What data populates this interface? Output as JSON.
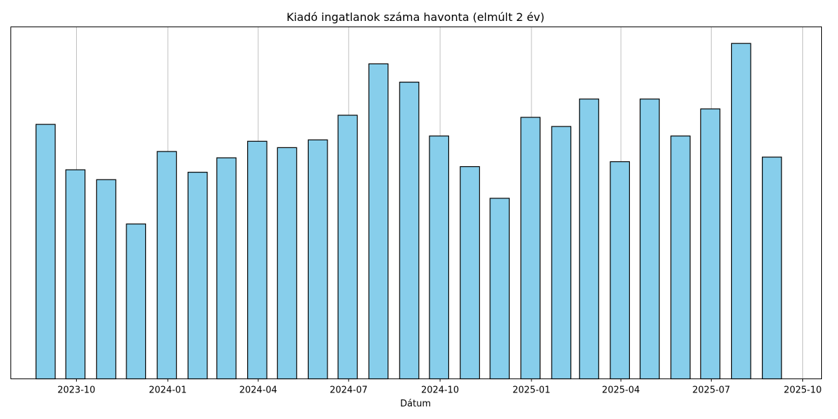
{
  "chart_data": {
    "type": "bar",
    "title": "Kiadó ingatlanok száma havonta (elmúlt 2 év)",
    "xlabel": "Dátum",
    "ylabel": "",
    "y_axis_visible": false,
    "ylim": [
      0,
      1
    ],
    "grid": "x-only",
    "bar_color": "#87ceeb",
    "bar_edge_color": "#000000",
    "grid_color": "#b0b0b0",
    "xlim": [
      "2023-07-27",
      "2025-10-20"
    ],
    "x_ticks": [
      {
        "date": "2023-10-01",
        "label": "2023-10"
      },
      {
        "date": "2024-01-01",
        "label": "2024-01"
      },
      {
        "date": "2024-04-01",
        "label": "2024-04"
      },
      {
        "date": "2024-07-01",
        "label": "2024-07"
      },
      {
        "date": "2024-10-01",
        "label": "2024-10"
      },
      {
        "date": "2025-01-01",
        "label": "2025-01"
      },
      {
        "date": "2025-04-01",
        "label": "2025-04"
      },
      {
        "date": "2025-07-01",
        "label": "2025-07"
      },
      {
        "date": "2025-10-01",
        "label": "2025-10"
      }
    ],
    "x": [
      "2023-08-31",
      "2023-09-30",
      "2023-10-31",
      "2023-11-30",
      "2023-12-31",
      "2024-01-31",
      "2024-02-29",
      "2024-03-31",
      "2024-04-30",
      "2024-05-31",
      "2024-06-30",
      "2024-07-31",
      "2024-08-31",
      "2024-09-30",
      "2024-10-31",
      "2024-11-30",
      "2024-12-31",
      "2025-01-31",
      "2025-02-28",
      "2025-03-31",
      "2025-04-30",
      "2025-05-31",
      "2025-06-30",
      "2025-07-31",
      "2025-08-31"
    ],
    "values": [
      0.723,
      0.594,
      0.566,
      0.44,
      0.646,
      0.587,
      0.628,
      0.675,
      0.657,
      0.679,
      0.749,
      0.895,
      0.843,
      0.69,
      0.603,
      0.513,
      0.743,
      0.717,
      0.795,
      0.617,
      0.795,
      0.69,
      0.767,
      0.953,
      0.63
    ]
  }
}
